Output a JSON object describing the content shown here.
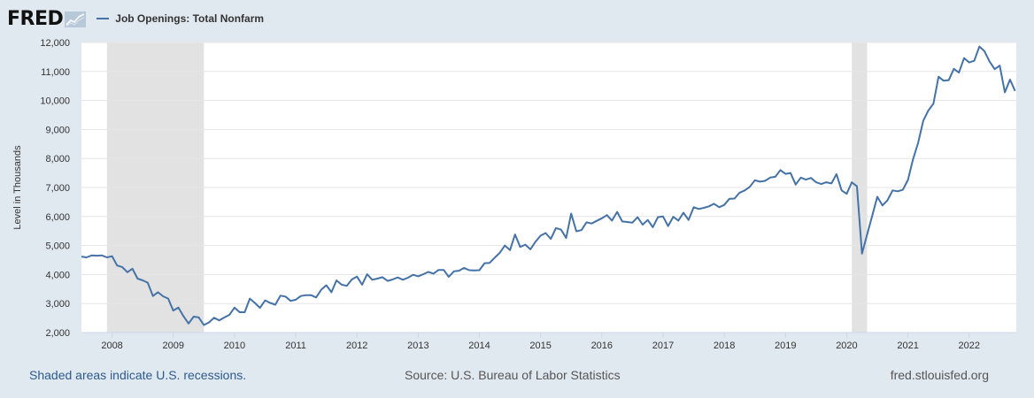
{
  "header": {
    "logo_text": "FRED",
    "logo_icon": "fred-chart-icon",
    "series_label": "Job Openings: Total Nonfarm"
  },
  "footer": {
    "recession_note": "Shaded areas indicate U.S. recessions.",
    "source": "Source: U.S. Bureau of Labor Statistics",
    "site": "fred.stlouisfed.org"
  },
  "colors": {
    "page_background": "#e1e9f0",
    "plot_background": "#ffffff",
    "series_line": "#4572a7",
    "recession_shade": "#e2e2e2",
    "link_text": "#2c5a8f"
  },
  "chart_data": {
    "type": "line",
    "title": "",
    "xlabel": "",
    "ylabel": "Level in Thousands",
    "ylim": [
      2000,
      12000
    ],
    "xlim": [
      "2007-07",
      "2022-09"
    ],
    "grid": "horizontal",
    "y_ticks": [
      2000,
      3000,
      4000,
      5000,
      6000,
      7000,
      8000,
      9000,
      10000,
      11000,
      12000
    ],
    "y_tick_labels": [
      "2,000",
      "3,000",
      "4,000",
      "5,000",
      "6,000",
      "7,000",
      "8,000",
      "9,000",
      "10,000",
      "11,000",
      "12,000"
    ],
    "x_ticks": [
      "2008",
      "2009",
      "2010",
      "2011",
      "2012",
      "2013",
      "2014",
      "2015",
      "2016",
      "2017",
      "2018",
      "2019",
      "2020",
      "2021",
      "2022"
    ],
    "recessions": [
      {
        "start": "2007-12",
        "end": "2009-06"
      },
      {
        "start": "2020-02",
        "end": "2020-04"
      }
    ],
    "series": [
      {
        "name": "Job Openings: Total Nonfarm",
        "points": [
          [
            "2007-07",
            4620
          ],
          [
            "2007-08",
            4590
          ],
          [
            "2007-09",
            4660
          ],
          [
            "2007-10",
            4650
          ],
          [
            "2007-11",
            4660
          ],
          [
            "2007-12",
            4590
          ],
          [
            "2008-01",
            4630
          ],
          [
            "2008-02",
            4310
          ],
          [
            "2008-03",
            4260
          ],
          [
            "2008-04",
            4080
          ],
          [
            "2008-05",
            4200
          ],
          [
            "2008-06",
            3860
          ],
          [
            "2008-07",
            3800
          ],
          [
            "2008-08",
            3720
          ],
          [
            "2008-09",
            3260
          ],
          [
            "2008-10",
            3390
          ],
          [
            "2008-11",
            3250
          ],
          [
            "2008-12",
            3170
          ],
          [
            "2009-01",
            2760
          ],
          [
            "2009-02",
            2860
          ],
          [
            "2009-03",
            2560
          ],
          [
            "2009-04",
            2310
          ],
          [
            "2009-05",
            2550
          ],
          [
            "2009-06",
            2520
          ],
          [
            "2009-07",
            2260
          ],
          [
            "2009-08",
            2350
          ],
          [
            "2009-09",
            2510
          ],
          [
            "2009-10",
            2420
          ],
          [
            "2009-11",
            2520
          ],
          [
            "2009-12",
            2610
          ],
          [
            "2010-01",
            2860
          ],
          [
            "2010-02",
            2700
          ],
          [
            "2010-03",
            2700
          ],
          [
            "2010-04",
            3170
          ],
          [
            "2010-05",
            3020
          ],
          [
            "2010-06",
            2850
          ],
          [
            "2010-07",
            3110
          ],
          [
            "2010-08",
            3020
          ],
          [
            "2010-09",
            2960
          ],
          [
            "2010-10",
            3270
          ],
          [
            "2010-11",
            3240
          ],
          [
            "2010-12",
            3090
          ],
          [
            "2011-01",
            3130
          ],
          [
            "2011-02",
            3260
          ],
          [
            "2011-03",
            3290
          ],
          [
            "2011-04",
            3290
          ],
          [
            "2011-05",
            3210
          ],
          [
            "2011-06",
            3480
          ],
          [
            "2011-07",
            3630
          ],
          [
            "2011-08",
            3390
          ],
          [
            "2011-09",
            3800
          ],
          [
            "2011-10",
            3650
          ],
          [
            "2011-11",
            3610
          ],
          [
            "2011-12",
            3830
          ],
          [
            "2012-01",
            3930
          ],
          [
            "2012-02",
            3650
          ],
          [
            "2012-03",
            4010
          ],
          [
            "2012-04",
            3820
          ],
          [
            "2012-05",
            3860
          ],
          [
            "2012-06",
            3910
          ],
          [
            "2012-07",
            3780
          ],
          [
            "2012-08",
            3830
          ],
          [
            "2012-09",
            3900
          ],
          [
            "2012-10",
            3820
          ],
          [
            "2012-11",
            3890
          ],
          [
            "2012-12",
            3990
          ],
          [
            "2013-01",
            3940
          ],
          [
            "2013-02",
            4010
          ],
          [
            "2013-03",
            4090
          ],
          [
            "2013-04",
            4030
          ],
          [
            "2013-05",
            4160
          ],
          [
            "2013-06",
            4160
          ],
          [
            "2013-07",
            3920
          ],
          [
            "2013-08",
            4110
          ],
          [
            "2013-09",
            4130
          ],
          [
            "2013-10",
            4230
          ],
          [
            "2013-11",
            4150
          ],
          [
            "2013-12",
            4140
          ],
          [
            "2014-01",
            4150
          ],
          [
            "2014-02",
            4390
          ],
          [
            "2014-03",
            4400
          ],
          [
            "2014-04",
            4580
          ],
          [
            "2014-05",
            4750
          ],
          [
            "2014-06",
            5000
          ],
          [
            "2014-07",
            4840
          ],
          [
            "2014-08",
            5380
          ],
          [
            "2014-09",
            4950
          ],
          [
            "2014-10",
            5030
          ],
          [
            "2014-11",
            4870
          ],
          [
            "2014-12",
            5130
          ],
          [
            "2015-01",
            5340
          ],
          [
            "2015-02",
            5430
          ],
          [
            "2015-03",
            5230
          ],
          [
            "2015-04",
            5600
          ],
          [
            "2015-05",
            5550
          ],
          [
            "2015-06",
            5260
          ],
          [
            "2015-07",
            6100
          ],
          [
            "2015-08",
            5490
          ],
          [
            "2015-09",
            5530
          ],
          [
            "2015-10",
            5800
          ],
          [
            "2015-11",
            5760
          ],
          [
            "2015-12",
            5850
          ],
          [
            "2016-01",
            5940
          ],
          [
            "2016-02",
            6050
          ],
          [
            "2016-03",
            5860
          ],
          [
            "2016-04",
            6160
          ],
          [
            "2016-05",
            5830
          ],
          [
            "2016-06",
            5810
          ],
          [
            "2016-07",
            5790
          ],
          [
            "2016-08",
            5980
          ],
          [
            "2016-09",
            5720
          ],
          [
            "2016-10",
            5880
          ],
          [
            "2016-11",
            5630
          ],
          [
            "2016-12",
            5980
          ],
          [
            "2017-01",
            6000
          ],
          [
            "2017-02",
            5670
          ],
          [
            "2017-03",
            5990
          ],
          [
            "2017-04",
            5860
          ],
          [
            "2017-05",
            6130
          ],
          [
            "2017-06",
            5880
          ],
          [
            "2017-07",
            6320
          ],
          [
            "2017-08",
            6260
          ],
          [
            "2017-09",
            6300
          ],
          [
            "2017-10",
            6350
          ],
          [
            "2017-11",
            6440
          ],
          [
            "2017-12",
            6320
          ],
          [
            "2018-01",
            6400
          ],
          [
            "2018-02",
            6610
          ],
          [
            "2018-03",
            6620
          ],
          [
            "2018-04",
            6820
          ],
          [
            "2018-05",
            6900
          ],
          [
            "2018-06",
            7020
          ],
          [
            "2018-07",
            7250
          ],
          [
            "2018-08",
            7200
          ],
          [
            "2018-09",
            7230
          ],
          [
            "2018-10",
            7340
          ],
          [
            "2018-11",
            7370
          ],
          [
            "2018-12",
            7600
          ],
          [
            "2019-01",
            7470
          ],
          [
            "2019-02",
            7500
          ],
          [
            "2019-03",
            7100
          ],
          [
            "2019-04",
            7340
          ],
          [
            "2019-05",
            7270
          ],
          [
            "2019-06",
            7330
          ],
          [
            "2019-07",
            7180
          ],
          [
            "2019-08",
            7120
          ],
          [
            "2019-09",
            7180
          ],
          [
            "2019-10",
            7140
          ],
          [
            "2019-11",
            7460
          ],
          [
            "2019-12",
            6900
          ],
          [
            "2020-01",
            6780
          ],
          [
            "2020-02",
            7180
          ],
          [
            "2020-03",
            7040
          ],
          [
            "2020-04",
            4720
          ],
          [
            "2020-05",
            5380
          ],
          [
            "2020-06",
            6030
          ],
          [
            "2020-07",
            6680
          ],
          [
            "2020-08",
            6380
          ],
          [
            "2020-09",
            6560
          ],
          [
            "2020-10",
            6900
          ],
          [
            "2020-11",
            6870
          ],
          [
            "2020-12",
            6920
          ],
          [
            "2021-01",
            7260
          ],
          [
            "2021-02",
            7980
          ],
          [
            "2021-03",
            8540
          ],
          [
            "2021-04",
            9300
          ],
          [
            "2021-05",
            9650
          ],
          [
            "2021-06",
            9890
          ],
          [
            "2021-07",
            10820
          ],
          [
            "2021-08",
            10680
          ],
          [
            "2021-09",
            10700
          ],
          [
            "2021-10",
            11090
          ],
          [
            "2021-11",
            10960
          ],
          [
            "2021-12",
            11460
          ],
          [
            "2022-01",
            11310
          ],
          [
            "2022-02",
            11370
          ],
          [
            "2022-03",
            11860
          ],
          [
            "2022-04",
            11700
          ],
          [
            "2022-05",
            11340
          ],
          [
            "2022-06",
            11080
          ],
          [
            "2022-07",
            11200
          ],
          [
            "2022-08",
            10280
          ],
          [
            "2022-09",
            10720
          ],
          [
            "2022-10",
            10330
          ]
        ]
      }
    ]
  }
}
